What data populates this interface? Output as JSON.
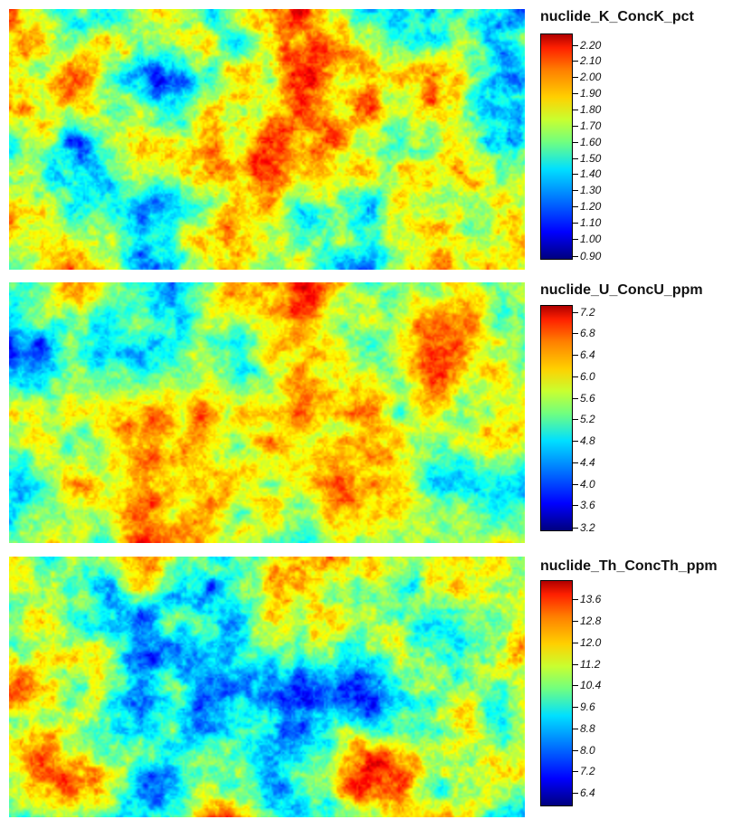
{
  "layers": [
    {
      "title": "nuclide_K_ConcK_pct",
      "ticks": [
        "2.20",
        "2.10",
        "2.00",
        "1.90",
        "1.80",
        "1.70",
        "1.60",
        "1.50",
        "1.40",
        "1.30",
        "1.20",
        "1.10",
        "1.00",
        "0.90"
      ],
      "tick_fractions": [
        0.05,
        0.121,
        0.193,
        0.264,
        0.336,
        0.407,
        0.479,
        0.55,
        0.621,
        0.693,
        0.764,
        0.836,
        0.907,
        0.985
      ]
    },
    {
      "title": "nuclide_U_ConcU_ppm",
      "ticks": [
        "7.2",
        "6.8",
        "6.4",
        "6.0",
        "5.6",
        "5.2",
        "4.8",
        "4.4",
        "4.0",
        "3.6",
        "3.2"
      ],
      "tick_fractions": [
        0.03,
        0.125,
        0.22,
        0.315,
        0.41,
        0.505,
        0.6,
        0.695,
        0.79,
        0.885,
        0.985
      ]
    },
    {
      "title": "nuclide_Th_ConcTh_ppm",
      "ticks": [
        "13.6",
        "12.8",
        "12.0",
        "11.2",
        "10.4",
        "9.6",
        "8.8",
        "8.0",
        "7.2",
        "6.4"
      ],
      "tick_fractions": [
        0.085,
        0.18,
        0.275,
        0.37,
        0.465,
        0.56,
        0.655,
        0.75,
        0.845,
        0.94
      ]
    }
  ],
  "colormap": "jet"
}
